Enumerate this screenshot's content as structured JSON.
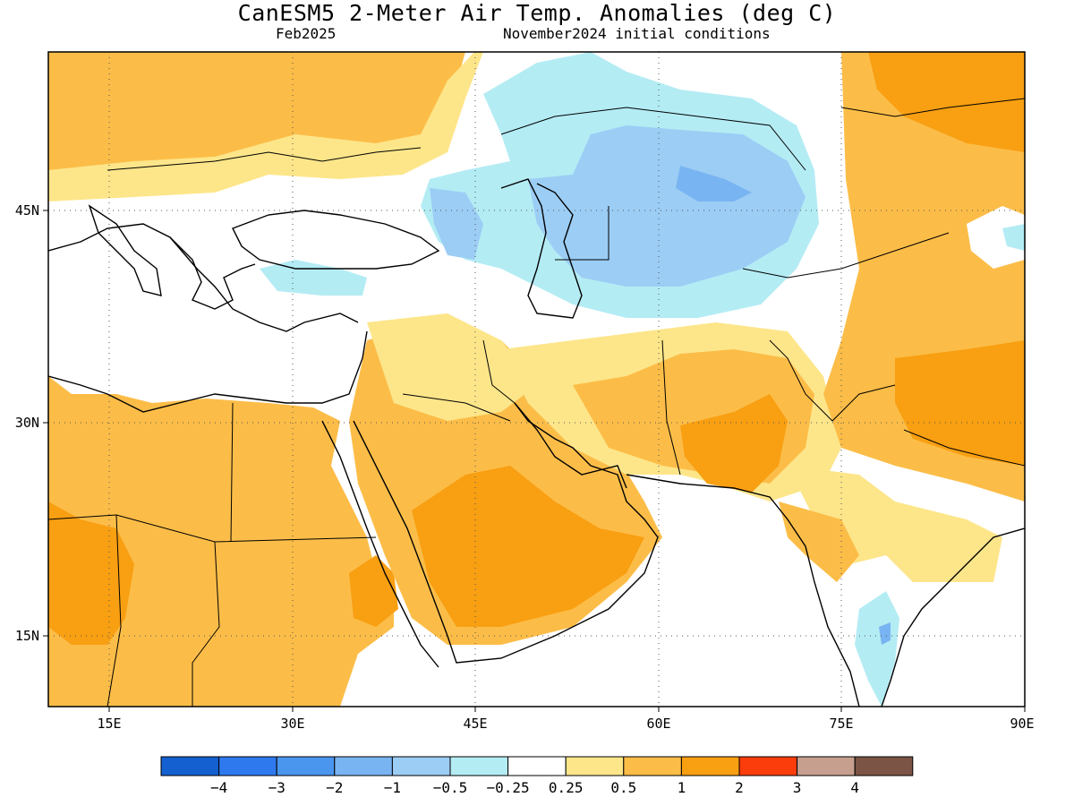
{
  "header": {
    "title": "CanESM5 2-Meter Air Temp. Anomalies (deg C)",
    "valid_month": "Feb2025",
    "init_conditions": "November2024 initial conditions"
  },
  "map": {
    "region": "Middle East / South-West Asia",
    "lon_range": [
      10,
      90
    ],
    "lat_range": [
      10,
      55
    ],
    "lon_ticks": [
      "15E",
      "30E",
      "45E",
      "60E",
      "75E",
      "90E"
    ],
    "lat_ticks": [
      "45N",
      "30N",
      "15N"
    ],
    "gridlines": "dotted",
    "ocean_fill": "#ffffff"
  },
  "colorbar": {
    "labels": [
      "−4",
      "−3",
      "−2",
      "−1",
      "−0.5",
      "−0.25",
      "0.25",
      "0.5",
      "1",
      "2",
      "3",
      "4"
    ],
    "colors": [
      "#1560d0",
      "#2f79ef",
      "#4a96ef",
      "#79b4f2",
      "#9ccdf5",
      "#b4ecf4",
      "#ffffff",
      "#fde68a",
      "#fcbd48",
      "#f89f12",
      "#fa3d0b",
      "#c69f8e",
      "#7b5446"
    ]
  },
  "anomaly_regions": {
    "legend_values_shown": [
      "−1",
      "−0.5",
      "−0.25",
      "0.25",
      "0.5",
      "1",
      "2"
    ],
    "warm_regions": [
      "North Africa",
      "Arabian Peninsula",
      "Iran",
      "Pakistan",
      "Tibet",
      "Central Europe",
      "Ukraine/Russia"
    ],
    "cool_regions": [
      "Caspian Sea",
      "Kazakhstan",
      "Caucasus",
      "Anatolia",
      "Southern India"
    ]
  }
}
